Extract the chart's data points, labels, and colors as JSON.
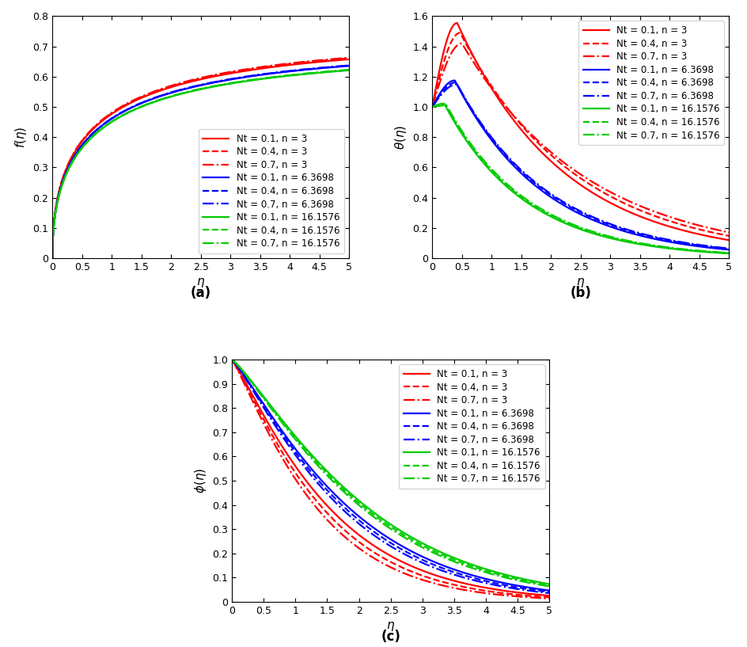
{
  "eta_max": 5.0,
  "eta_points": 500,
  "colors": {
    "red": "#FF0000",
    "blue": "#0000FF",
    "green": "#00CC00"
  },
  "line_styles": {
    "Nt01": "-",
    "Nt04": "--",
    "Nt07": "-."
  },
  "legend_entries": [
    {
      "label": "Nt = 0.1, n = 3",
      "color": "#FF0000",
      "ls": "-"
    },
    {
      "label": "Nt = 0.4, n = 3",
      "color": "#FF0000",
      "ls": "--"
    },
    {
      "label": "Nt = 0.7, n = 3",
      "color": "#FF0000",
      "ls": "-."
    },
    {
      "label": "Nt = 0.1, n = 6.3698",
      "color": "#0000FF",
      "ls": "-"
    },
    {
      "label": "Nt = 0.4, n = 6.3698",
      "color": "#0000FF",
      "ls": "--"
    },
    {
      "label": "Nt = 0.7, n = 6.3698",
      "color": "#0000FF",
      "ls": "-."
    },
    {
      "label": "Nt = 0.1, n = 16.1576",
      "color": "#00CC00",
      "ls": "-"
    },
    {
      "label": "Nt = 0.4, n = 16.1576",
      "color": "#00CC00",
      "ls": "--"
    },
    {
      "label": "Nt = 0.7, n = 16.1576",
      "color": "#00CC00",
      "ls": "-."
    }
  ],
  "subplot_labels": [
    "(a)",
    "(b)",
    "(c)"
  ],
  "xlabel": "η",
  "fa_ylim": [
    0,
    0.8
  ],
  "fb_ylim": [
    0,
    1.6
  ],
  "fc_ylim": [
    0,
    1.0
  ],
  "fa_yticks": [
    0,
    0.1,
    0.2,
    0.3,
    0.4,
    0.5,
    0.6,
    0.7,
    0.8
  ],
  "fb_yticks": [
    0,
    0.2,
    0.4,
    0.6,
    0.8,
    1.0,
    1.2,
    1.4,
    1.6
  ],
  "fc_yticks": [
    0,
    0.1,
    0.2,
    0.3,
    0.4,
    0.5,
    0.6,
    0.7,
    0.8,
    0.9,
    1.0
  ],
  "xticks": [
    0,
    0.5,
    1.0,
    1.5,
    2.0,
    2.5,
    3.0,
    3.5,
    4.0,
    4.5,
    5.0
  ],
  "xtick_labels": [
    "0",
    "0.5",
    "1",
    "1.5",
    "2",
    "2.5",
    "3",
    "3.5",
    "4",
    "4.5",
    "5"
  ],
  "linewidth": 1.6,
  "fontsize_label": 11,
  "fontsize_tick": 9,
  "fontsize_legend": 8.5,
  "fontsize_sublabel": 12,
  "f_params": {
    "3": {
      "Nt01": {
        "asym": 0.722,
        "k": 1.08
      },
      "Nt04": {
        "asym": 0.7255,
        "k": 1.08
      },
      "Nt07": {
        "asym": 0.728,
        "k": 1.08
      }
    },
    "6.3698": {
      "Nt01": {
        "asym": 0.698,
        "k": 1.08
      },
      "Nt04": {
        "asym": 0.699,
        "k": 1.08
      },
      "Nt07": {
        "asym": 0.7,
        "k": 1.08
      }
    },
    "16.1576": {
      "Nt01": {
        "asym": 0.682,
        "k": 1.08
      },
      "Nt04": {
        "asym": 0.683,
        "k": 1.08
      },
      "Nt07": {
        "asym": 0.684,
        "k": 1.08
      }
    }
  },
  "theta_params": {
    "3": {
      "Nt01": {
        "peak": 1.555,
        "peak_eta": 0.42,
        "k": 0.55
      },
      "Nt04": {
        "peak": 1.49,
        "peak_eta": 0.47,
        "k": 0.5
      },
      "Nt07": {
        "peak": 1.42,
        "peak_eta": 0.5,
        "k": 0.46
      }
    },
    "6.3698": {
      "Nt01": {
        "peak": 1.175,
        "peak_eta": 0.38,
        "k": 0.65
      },
      "Nt04": {
        "peak": 1.162,
        "peak_eta": 0.4,
        "k": 0.63
      },
      "Nt07": {
        "peak": 1.15,
        "peak_eta": 0.42,
        "k": 0.62
      }
    },
    "16.1576": {
      "Nt01": {
        "peak": 1.022,
        "peak_eta": 0.2,
        "k": 0.72
      },
      "Nt04": {
        "peak": 1.015,
        "peak_eta": 0.22,
        "k": 0.71
      },
      "Nt07": {
        "peak": 1.01,
        "peak_eta": 0.24,
        "k": 0.7
      }
    }
  },
  "phi_params": {
    "3": {
      "Nt01": {
        "k1": 0.58,
        "k2": 1.15
      },
      "Nt04": {
        "k1": 0.63,
        "k2": 1.15
      },
      "Nt07": {
        "k1": 0.68,
        "k2": 1.15
      }
    },
    "6.3698": {
      "Nt01": {
        "k1": 0.46,
        "k2": 1.18
      },
      "Nt04": {
        "k1": 0.48,
        "k2": 1.18
      },
      "Nt07": {
        "k1": 0.5,
        "k2": 1.18
      }
    },
    "16.1576": {
      "Nt01": {
        "k1": 0.38,
        "k2": 1.2
      },
      "Nt04": {
        "k1": 0.39,
        "k2": 1.2
      },
      "Nt07": {
        "k1": 0.4,
        "k2": 1.2
      }
    }
  }
}
